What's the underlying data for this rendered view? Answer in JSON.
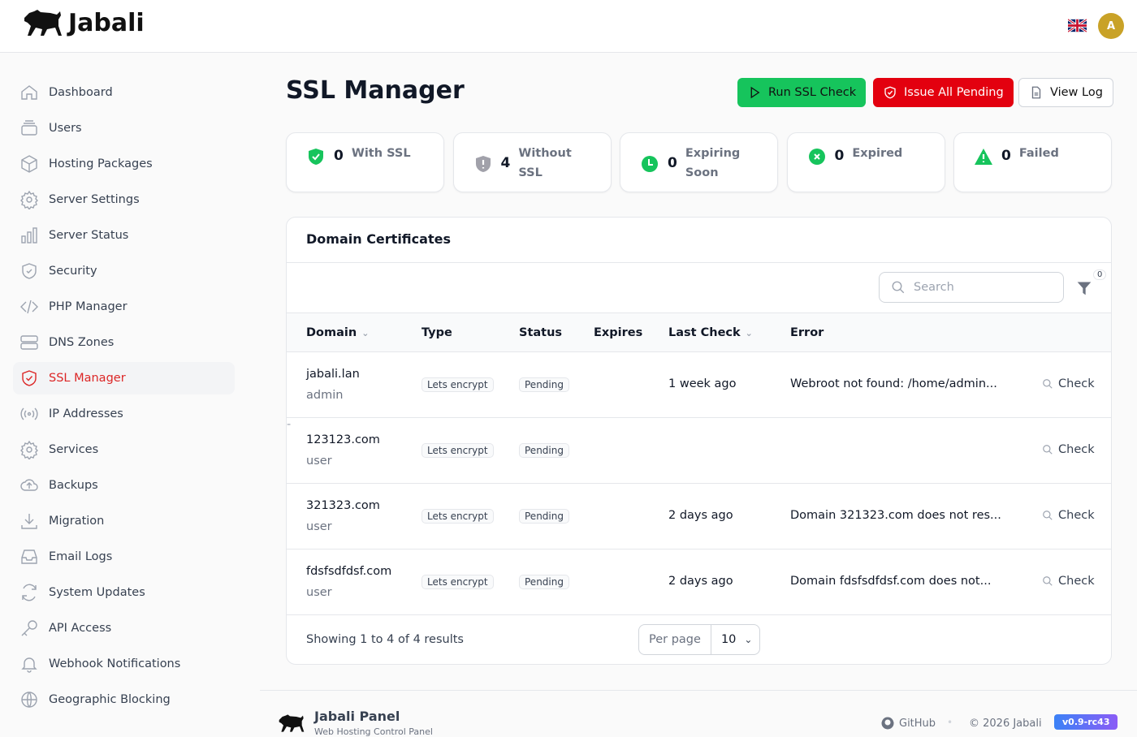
{
  "header": {
    "brand": "Jabali",
    "avatar_initial": "A",
    "language": "English (UK)"
  },
  "sidebar": {
    "items": [
      {
        "label": "Dashboard",
        "icon": "home-icon"
      },
      {
        "label": "Users",
        "icon": "users-icon"
      },
      {
        "label": "Hosting Packages",
        "icon": "cube-icon"
      },
      {
        "label": "Server Settings",
        "icon": "gear-icon"
      },
      {
        "label": "Server Status",
        "icon": "bar-chart-icon"
      },
      {
        "label": "Security",
        "icon": "shield-icon"
      },
      {
        "label": "PHP Manager",
        "icon": "code-icon"
      },
      {
        "label": "DNS Zones",
        "icon": "server-icon"
      },
      {
        "label": "SSL Manager",
        "icon": "shield-check-icon",
        "active": true
      },
      {
        "label": "IP Addresses",
        "icon": "signal-icon"
      },
      {
        "label": "Services",
        "icon": "gear-icon"
      },
      {
        "label": "Backups",
        "icon": "cloud-upload-icon"
      },
      {
        "label": "Migration",
        "icon": "download-icon"
      },
      {
        "label": "Email Logs",
        "icon": "inbox-icon"
      },
      {
        "label": "System Updates",
        "icon": "refresh-icon"
      },
      {
        "label": "API Access",
        "icon": "key-icon"
      },
      {
        "label": "Webhook Notifications",
        "icon": "bell-icon"
      },
      {
        "label": "Geographic Blocking",
        "icon": "globe-icon"
      }
    ]
  },
  "page": {
    "title": "SSL Manager",
    "actions": {
      "run": "Run SSL Check",
      "issue": "Issue All Pending",
      "log": "View Log"
    },
    "colors": {
      "success": "#16c45c",
      "danger": "#e3000f",
      "accent": "#dc2626"
    }
  },
  "stats": [
    {
      "value": "0",
      "label": "With SSL"
    },
    {
      "value": "4",
      "label": "Without SSL"
    },
    {
      "value": "0",
      "label": "Expiring Soon"
    },
    {
      "value": "0",
      "label": "Expired"
    },
    {
      "value": "0",
      "label": "Failed"
    }
  ],
  "table": {
    "title": "Domain Certificates",
    "search_placeholder": "Search",
    "filter_count": "0",
    "columns": [
      "Domain",
      "Type",
      "Status",
      "Expires",
      "Last Check",
      "Error"
    ],
    "check_label": "Check",
    "rows": [
      {
        "domain": "jabali.lan",
        "user": "admin",
        "type": "Lets encrypt",
        "status": "Pending",
        "expires": "",
        "last_check": "1 week ago",
        "error": "Webroot not found: /home/admin..."
      },
      {
        "domain": "123123.com",
        "user": "user",
        "type": "Lets encrypt",
        "status": "Pending",
        "expires": "",
        "last_check": "",
        "error": "-"
      },
      {
        "domain": "321323.com",
        "user": "user",
        "type": "Lets encrypt",
        "status": "Pending",
        "expires": "",
        "last_check": "2 days ago",
        "error": "Domain 321323.com does not res..."
      },
      {
        "domain": "fdsfsdfdsf.com",
        "user": "user",
        "type": "Lets encrypt",
        "status": "Pending",
        "expires": "",
        "last_check": "2 days ago",
        "error": "Domain fdsfsdfdsf.com does not..."
      }
    ],
    "summary": "Showing 1 to 4 of 4 results",
    "per_page_label": "Per page",
    "per_page": "10"
  },
  "footer": {
    "title": "Jabali Panel",
    "subtitle": "Web Hosting Control Panel",
    "github": "GitHub",
    "copyright": "© 2026 Jabali",
    "version": "v0.9-rc43"
  }
}
